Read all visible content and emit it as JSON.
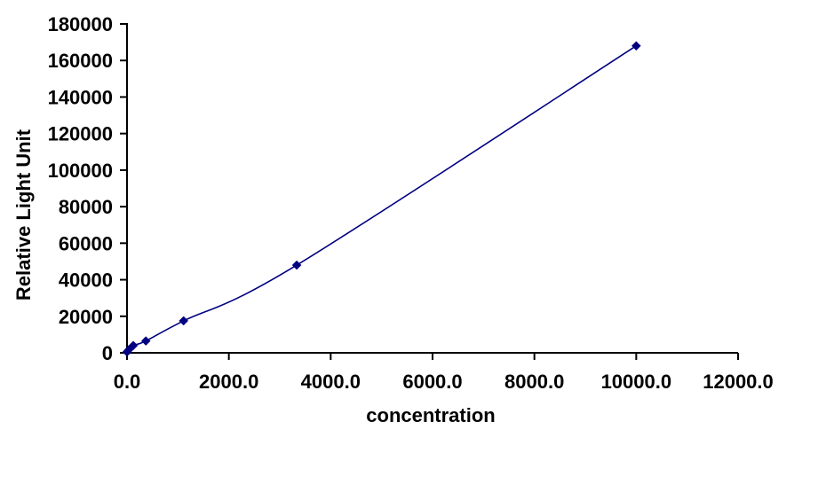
{
  "chart_data": {
    "type": "scatter",
    "xlabel": "concentration",
    "ylabel": "Relative Light Unit",
    "xlim": [
      0,
      12000
    ],
    "ylim": [
      0,
      180000
    ],
    "x_ticks": [
      0,
      2000,
      4000,
      6000,
      8000,
      10000,
      12000
    ],
    "x_tick_labels": [
      "0.0",
      "2000.0",
      "4000.0",
      "6000.0",
      "8000.0",
      "10000.0",
      "12000.0"
    ],
    "y_ticks": [
      0,
      20000,
      40000,
      60000,
      80000,
      100000,
      120000,
      140000,
      160000,
      180000
    ],
    "y_tick_labels": [
      "0",
      "20000",
      "40000",
      "60000",
      "80000",
      "100000",
      "120000",
      "140000",
      "160000",
      "180000"
    ],
    "grid": false,
    "legend": "none",
    "series": [
      {
        "x": [
          0,
          41,
          123,
          370,
          1111,
          3333,
          10000
        ],
        "y": [
          500,
          1800,
          4000,
          6500,
          17500,
          48000,
          168000
        ],
        "marker": "diamond",
        "line": "smooth",
        "color": "#000080"
      }
    ]
  }
}
